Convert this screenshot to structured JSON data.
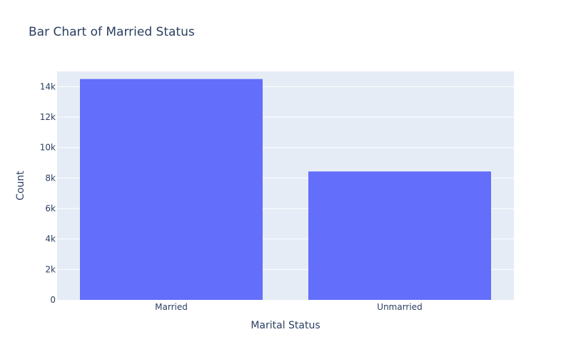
{
  "chart_data": {
    "type": "bar",
    "title": "Bar Chart of Married Status",
    "xlabel": "Marital Status",
    "ylabel": "Count",
    "categories": [
      "Married",
      "Unmarried"
    ],
    "values": [
      14500,
      8430
    ],
    "ylim": [
      0,
      15000
    ],
    "yticks": [
      0,
      2000,
      4000,
      6000,
      8000,
      10000,
      12000,
      14000
    ],
    "ytick_labels": [
      "0",
      "2k",
      "4k",
      "6k",
      "8k",
      "10k",
      "12k",
      "14k"
    ],
    "grid": true,
    "legend": "none"
  },
  "colors": {
    "bar": "#636efa",
    "plot_background": "#e5ecf6",
    "grid": "#ffffff",
    "text": "#2a3f5f"
  }
}
